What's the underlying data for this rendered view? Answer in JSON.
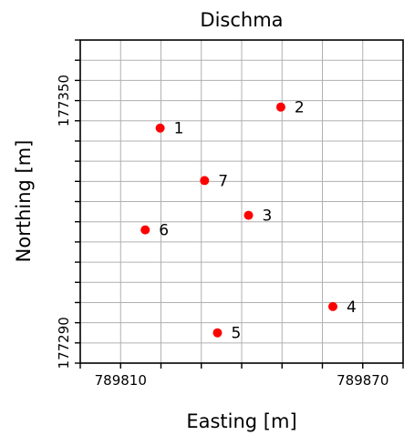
{
  "chart_data": {
    "type": "scatter",
    "title": "Dischma",
    "xlabel": "Easting [m]",
    "ylabel": "Northing [m]",
    "xlim": [
      789800,
      789880
    ],
    "ylim": [
      177285,
      177365
    ],
    "grid": true,
    "x_ticks": [
      789800,
      789810,
      789820,
      789830,
      789840,
      789850,
      789860,
      789870,
      789880
    ],
    "x_tick_labels": [
      "789810",
      "789870"
    ],
    "y_ticks": [
      177285,
      177290,
      177295,
      177300,
      177305,
      177310,
      177315,
      177320,
      177325,
      177330,
      177335,
      177340,
      177345,
      177350,
      177355,
      177360,
      177365
    ],
    "y_tick_labels": [
      "177290",
      "177350"
    ],
    "point_color": "#ff0000",
    "points": [
      {
        "label": "1",
        "x": 789819.8,
        "y": 177343.2
      },
      {
        "label": "2",
        "x": 789849.7,
        "y": 177348.4
      },
      {
        "label": "3",
        "x": 789841.7,
        "y": 177321.6
      },
      {
        "label": "4",
        "x": 789862.6,
        "y": 177299.0
      },
      {
        "label": "5",
        "x": 789834.0,
        "y": 177292.5
      },
      {
        "label": "6",
        "x": 789816.1,
        "y": 177318.0
      },
      {
        "label": "7",
        "x": 789830.8,
        "y": 177330.2
      }
    ]
  }
}
